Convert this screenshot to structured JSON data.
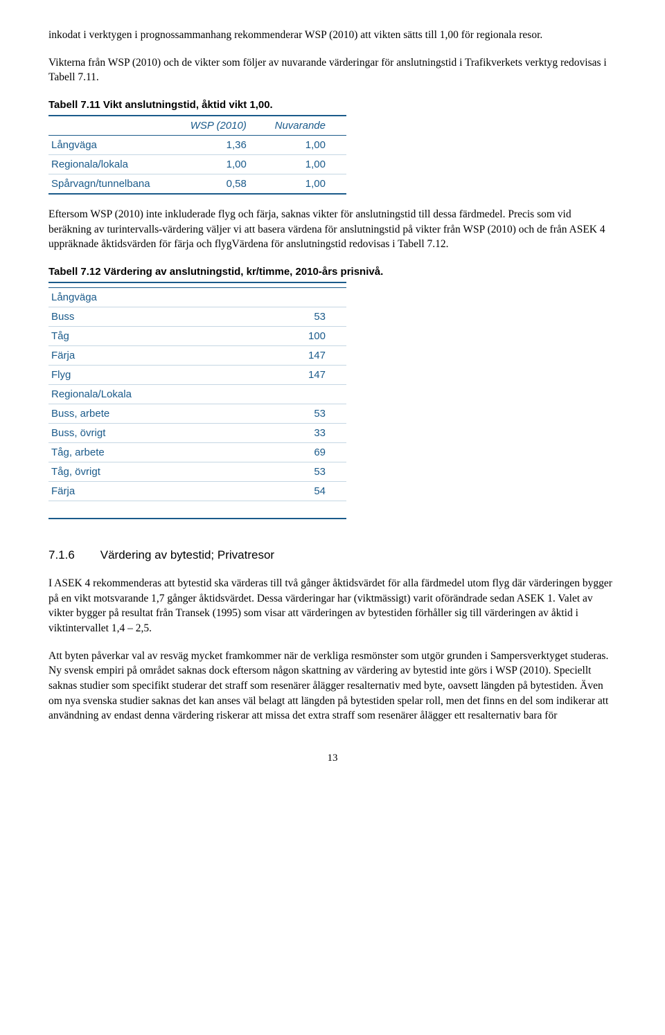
{
  "para1": "inkodat i verktygen i prognossammanhang rekommenderar WSP (2010) att vikten sätts till 1,00 för regionala resor.",
  "para2": "Vikterna från WSP (2010) och de vikter som följer av nuvarande värderingar för anslutningstid i Trafikverkets verktyg redovisas i Tabell 7.11.",
  "tbl711": {
    "caption": "Tabell 7.11 Vikt anslutningstid, åktid vikt 1,00.",
    "head": {
      "c1": "",
      "c2": "WSP (2010)",
      "c3": "Nuvarande"
    },
    "rows": [
      {
        "c1": "Långväga",
        "c2": "1,36",
        "c3": "1,00"
      },
      {
        "c1": "Regionala/lokala",
        "c2": "1,00",
        "c3": "1,00"
      },
      {
        "c1": "Spårvagn/tunnelbana",
        "c2": "0,58",
        "c3": "1,00"
      }
    ]
  },
  "para3": "Eftersom WSP (2010) inte inkluderade flyg och färja, saknas vikter för anslutningstid till dessa färdmedel. Precis som vid beräkning av turintervalls-värdering väljer vi att basera värdena för anslutningstid på vikter från WSP (2010) och de från ASEK 4 uppräknade åktidsvärden för färja och flygVärdena för anslutningstid redovisas i Tabell 7.12.",
  "tbl712": {
    "caption": "Tabell 7.12 Värdering av anslutningstid, kr/timme, 2010-års prisnivå.",
    "sections": [
      {
        "label": "Långväga",
        "rows": [
          {
            "c1": "Buss",
            "c2": "53"
          },
          {
            "c1": "Tåg",
            "c2": "100"
          },
          {
            "c1": "Färja",
            "c2": "147"
          },
          {
            "c1": "Flyg",
            "c2": "147"
          }
        ]
      },
      {
        "label": "Regionala/Lokala",
        "rows": [
          {
            "c1": "Buss, arbete",
            "c2": "53"
          },
          {
            "c1": "Buss, övrigt",
            "c2": "33"
          },
          {
            "c1": "Tåg, arbete",
            "c2": "69"
          },
          {
            "c1": "Tåg, övrigt",
            "c2": "53"
          },
          {
            "c1": "Färja",
            "c2": "54"
          }
        ]
      }
    ]
  },
  "heading": {
    "num": "7.1.6",
    "title": "Värdering av bytestid; Privatresor"
  },
  "para4": "I ASEK 4 rekommenderas att bytestid ska värderas till två gånger åktidsvärdet för alla färdmedel utom flyg där värderingen bygger på en vikt motsvarande 1,7 gånger åktidsvärdet. Dessa värderingar har (viktmässigt) varit oförändrade sedan ASEK 1. Valet av vikter bygger på resultat från Transek (1995) som visar att värderingen av bytestiden förhåller sig till värderingen av åktid i viktintervallet 1,4 – 2,5.",
  "para5": "Att byten påverkar val av resväg mycket framkommer när de verkliga resmönster som utgör grunden i Sampersverktyget studeras. Ny svensk empiri på området saknas dock eftersom någon skattning av värdering av bytestid inte görs i WSP (2010). Speciellt saknas studier som specifikt studerar det straff som resenärer ålägger resalternativ med byte, oavsett längden på bytestiden. Även om nya svenska studier saknas det kan anses väl belagt att längden på bytestiden spelar roll, men det finns en del som indikerar att användning av endast denna värdering riskerar att missa det extra straff som resenärer ålägger ett resalternativ bara för",
  "pageNum": "13"
}
